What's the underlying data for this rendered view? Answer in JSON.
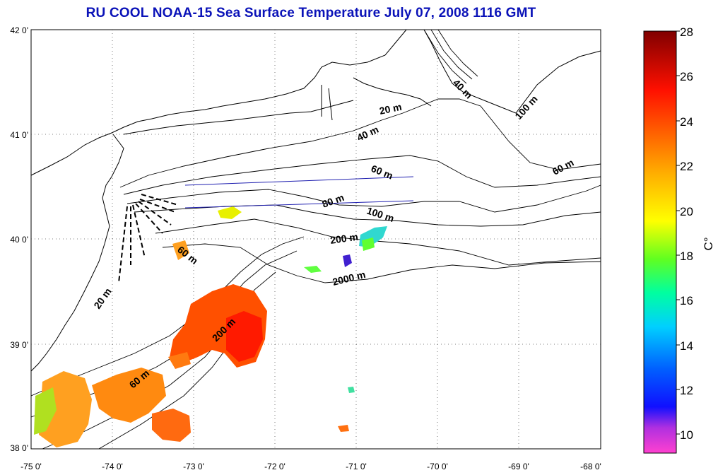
{
  "title": "RU COOL  NOAA-15 Sea Surface Temperature July 07, 2008 1116 GMT",
  "map": {
    "lon_ticks": [
      "-75 0'",
      "-74 0'",
      "-73 0'",
      "-72 0'",
      "-71 0'",
      "-70 0'",
      "-69 0'",
      "-68 0'"
    ],
    "lat_ticks": [
      "42 0'",
      "41 0'",
      "40 0'",
      "39 0'",
      "38 0'"
    ],
    "depth_labels": [
      {
        "text": "20 m"
      },
      {
        "text": "40 m"
      },
      {
        "text": "40 m"
      },
      {
        "text": "60 m"
      },
      {
        "text": "60 m"
      },
      {
        "text": "100 m"
      },
      {
        "text": "80 m"
      },
      {
        "text": "100 m"
      },
      {
        "text": "200 m"
      },
      {
        "text": "2000 m"
      },
      {
        "text": "60 m"
      },
      {
        "text": "20 m"
      },
      {
        "text": "200 m"
      },
      {
        "text": "60 m"
      }
    ]
  },
  "colorbar": {
    "unit": "C°",
    "ticks": [
      "28",
      "26",
      "24",
      "22",
      "20",
      "18",
      "16",
      "14",
      "12",
      "10"
    ],
    "range": [
      9,
      28
    ],
    "colors": [
      "#ff40d0",
      "#8a20e0",
      "#0010ff",
      "#0090ff",
      "#00e0e0",
      "#00ff60",
      "#c0ff00",
      "#ffff00",
      "#ffb000",
      "#ff6000",
      "#ff1000",
      "#900000"
    ]
  }
}
